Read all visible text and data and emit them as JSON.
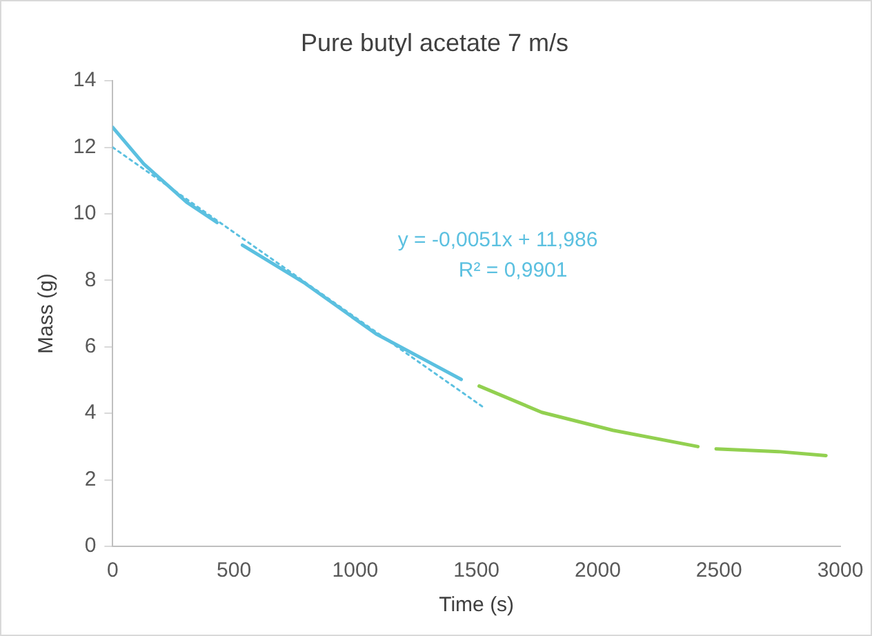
{
  "chart_data": {
    "type": "line",
    "title": "Pure butyl acetate 7 m/s",
    "xlabel": "Time (s)",
    "ylabel": "Mass (g)",
    "xlim": [
      0,
      3000
    ],
    "xticks": [
      0,
      500,
      1000,
      1500,
      2000,
      2500,
      3000
    ],
    "ylim": [
      0,
      14
    ],
    "yticks": [
      0,
      2,
      4,
      6,
      8,
      10,
      12,
      14
    ],
    "grid": false,
    "legend": false,
    "marker": "none",
    "series": [
      {
        "color": "#5bc0e0",
        "x": [
          0,
          128,
          305,
          430,
          480,
          535,
          793,
          1086,
          1281,
          1437
        ],
        "values": [
          12.6,
          11.5,
          10.35,
          9.74,
          null,
          9.06,
          7.91,
          6.39,
          5.63,
          5.02
        ]
      },
      {
        "color": "#92d050",
        "x": [
          1511,
          1769,
          2062,
          2413,
          2450,
          2488,
          2745,
          2941
        ],
        "values": [
          4.82,
          4.03,
          3.49,
          3.0,
          null,
          2.93,
          2.85,
          2.73
        ]
      },
      {
        "color": "#5bc0e0",
        "line_style": "dotted",
        "x": [
          0,
          1525
        ],
        "values": [
          12.0,
          4.2
        ]
      }
    ],
    "annotations": [
      "y = -0,0051x + 11,986",
      "R² = 0,9901"
    ]
  }
}
